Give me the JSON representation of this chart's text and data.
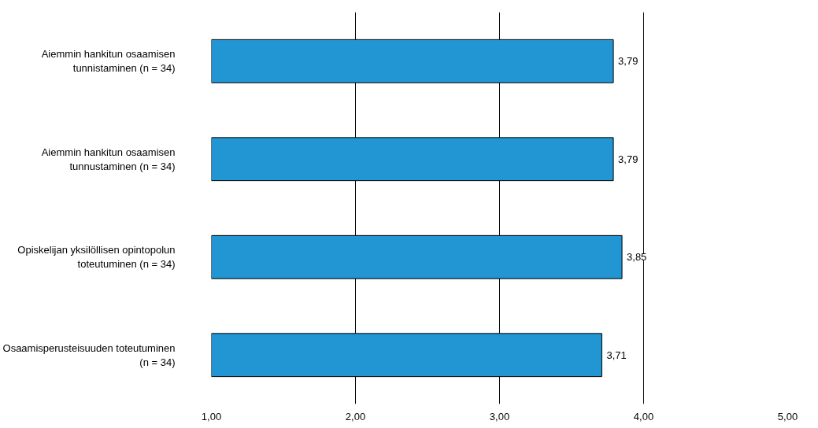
{
  "chart_data": {
    "type": "bar",
    "orientation": "horizontal",
    "categories": [
      "Aiemmin hankitun osaamisen tunnistaminen (n = 34)",
      "Aiemmin hankitun osaamisen tunnustaminen (n = 34)",
      "Opiskelijan yksilöllisen opintopolun toteutuminen (n = 34)",
      "Osaamisperusteisuuden toteutuminen (n = 34)"
    ],
    "values": [
      3.79,
      3.79,
      3.85,
      3.71
    ],
    "value_labels": [
      "3,79",
      "3,79",
      "3,85",
      "3,71"
    ],
    "color": "#2196d3",
    "xlim": [
      1,
      5
    ],
    "xticks": [
      {
        "value": 1,
        "label": "1,00"
      },
      {
        "value": 2,
        "label": "2,00"
      },
      {
        "value": 3,
        "label": "3,00"
      },
      {
        "value": 4,
        "label": "4,00"
      },
      {
        "value": 5,
        "label": "5,00"
      }
    ],
    "grid": "x"
  }
}
